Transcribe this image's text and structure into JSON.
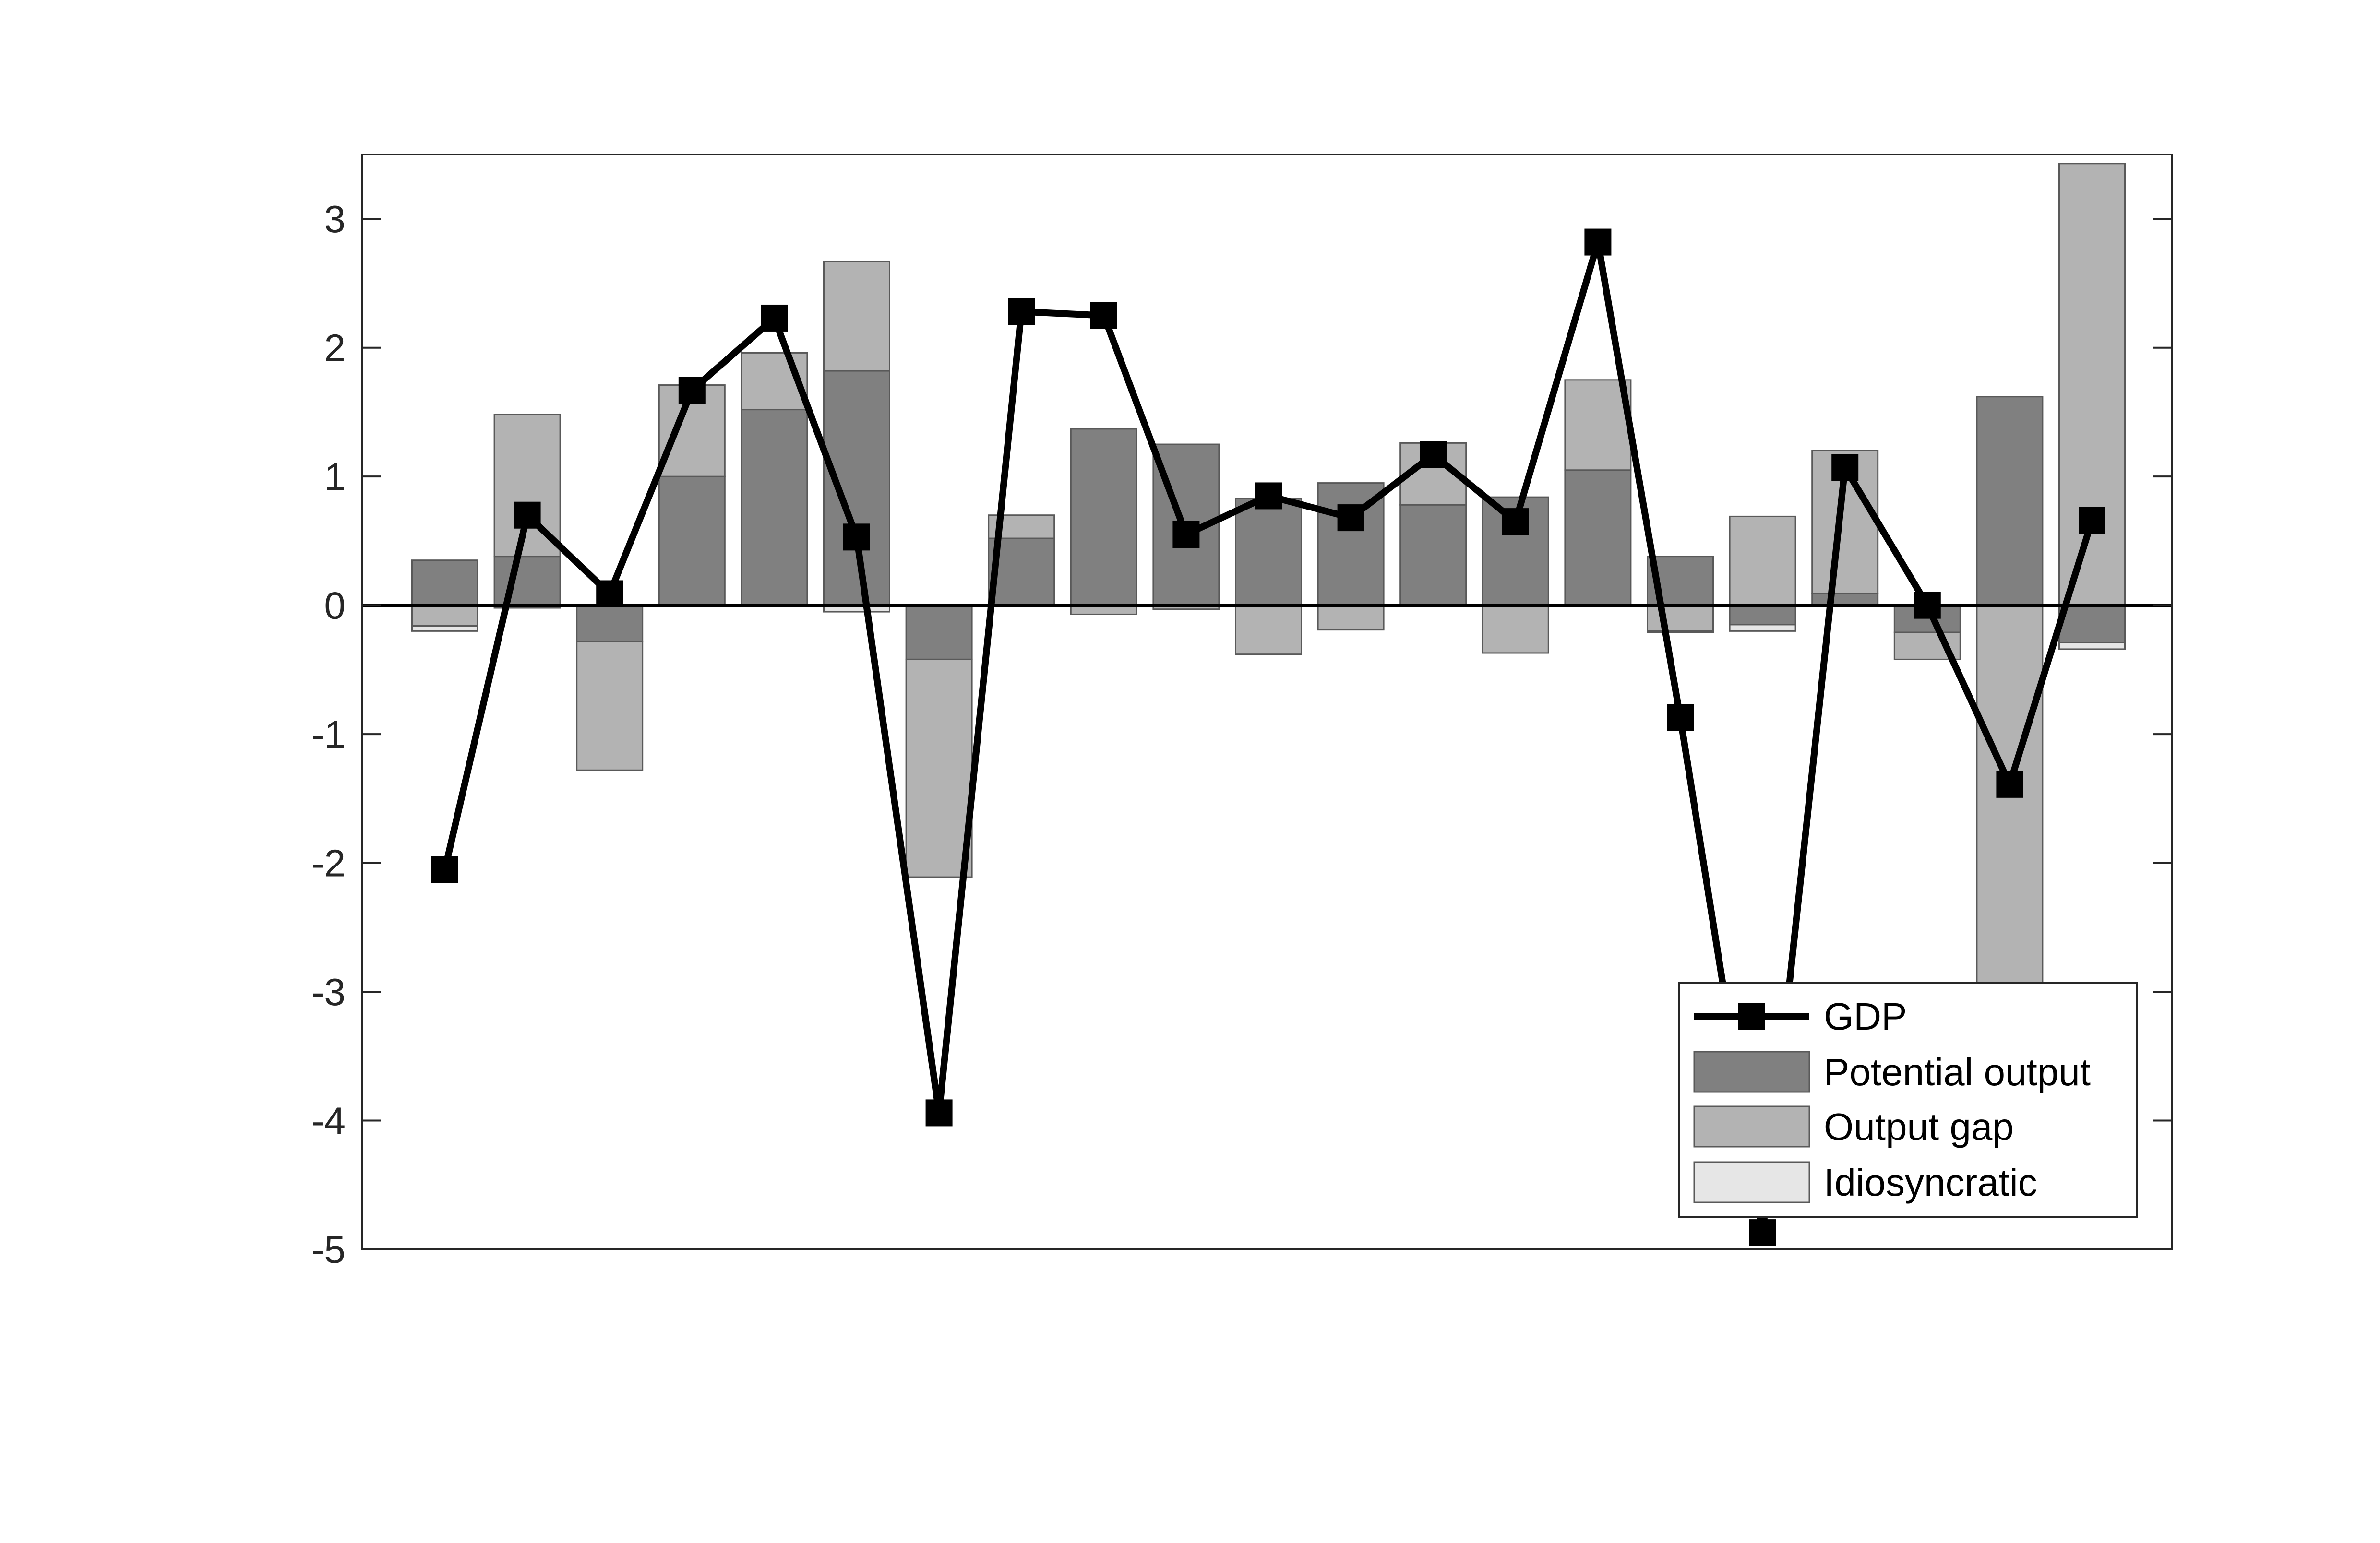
{
  "chart_data": {
    "type": "bar",
    "stacked": true,
    "title": "",
    "xlabel": "",
    "ylabel": "",
    "ylim": [
      -5,
      3.5
    ],
    "yticks": [
      3,
      2,
      1,
      0,
      -1,
      -2,
      -3,
      -4,
      -5
    ],
    "ytick_labels": [
      "3",
      "2",
      "1",
      "0",
      "-1",
      "-2",
      "-3",
      "-4",
      "-5"
    ],
    "n_periods": 21,
    "grid": false,
    "legend_position": "bottom-right",
    "legend": {
      "gdp": "GDP",
      "potential": "Potential output",
      "gap": "Output gap",
      "idio": "Idiosyncratic"
    },
    "colors": {
      "potential": "#808080",
      "gap": "#b3b3b3",
      "idio": "#e6e6e6",
      "line": "#000000"
    },
    "series": [
      {
        "key": "potential",
        "name": "Potential output",
        "values": [
          0.35,
          0.38,
          -0.28,
          1.0,
          1.52,
          1.82,
          -0.42,
          0.52,
          1.37,
          1.25,
          0.83,
          0.95,
          0.78,
          0.84,
          1.05,
          0.38,
          -0.15,
          0.09,
          -0.21,
          1.62,
          -0.29
        ]
      },
      {
        "key": "gap",
        "name": "Output gap",
        "values": [
          -0.16,
          1.1,
          -1.0,
          0.71,
          0.44,
          0.85,
          -1.69,
          0.18,
          -0.07,
          -0.03,
          -0.38,
          -0.19,
          0.48,
          -0.37,
          0.7,
          -0.2,
          0.69,
          1.11,
          -0.21,
          -3.7,
          3.43
        ]
      },
      {
        "key": "idio",
        "name": "Idiosyncratic",
        "values": [
          -0.04,
          -0.02,
          0.0,
          0.0,
          0.0,
          -0.05,
          0.0,
          0.0,
          0.0,
          0.0,
          0.0,
          0.0,
          0.0,
          0.0,
          0.0,
          -0.01,
          -0.05,
          0.0,
          0.0,
          0.0,
          -0.05
        ]
      },
      {
        "key": "gdp",
        "name": "GDP",
        "type": "line",
        "values": [
          -2.05,
          0.7,
          0.09,
          1.67,
          2.23,
          0.53,
          -3.94,
          2.28,
          2.25,
          0.55,
          0.85,
          0.68,
          1.17,
          0.65,
          2.82,
          -0.87,
          -4.87,
          1.07,
          0.0,
          -1.39,
          0.66
        ]
      }
    ]
  }
}
